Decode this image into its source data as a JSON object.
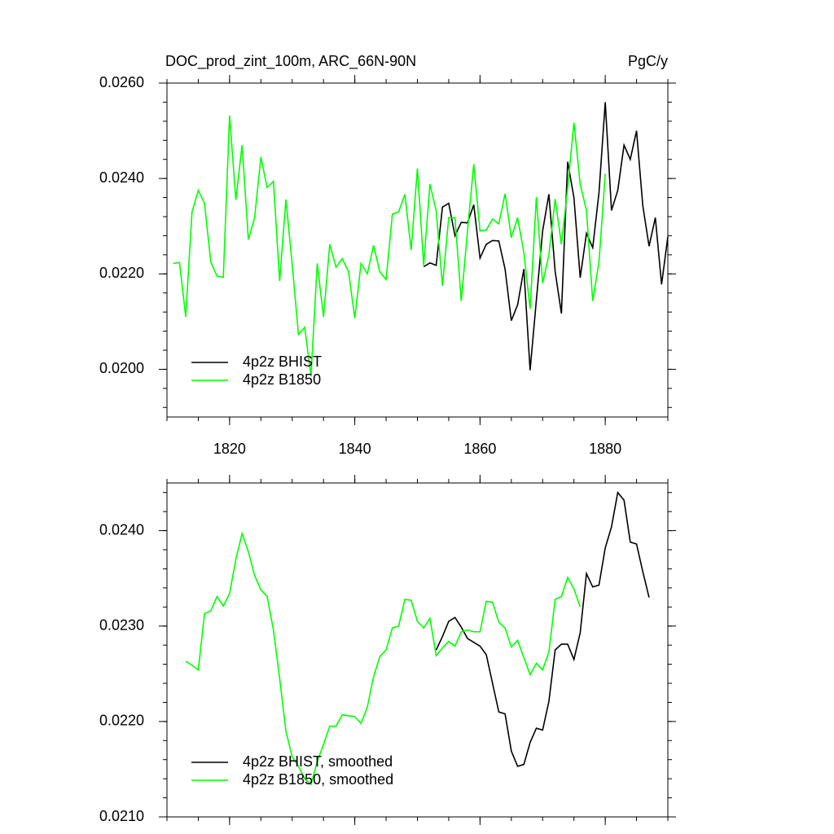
{
  "chart_data": [
    {
      "type": "line",
      "title": "DOC_prod_zint_100m, ARC_66N-90N",
      "units": "PgC/y",
      "x": [
        1811,
        1812,
        1813,
        1814,
        1815,
        1816,
        1817,
        1818,
        1819,
        1820,
        1821,
        1822,
        1823,
        1824,
        1825,
        1826,
        1827,
        1828,
        1829,
        1830,
        1831,
        1832,
        1833,
        1834,
        1835,
        1836,
        1837,
        1838,
        1839,
        1840,
        1841,
        1842,
        1843,
        1844,
        1845,
        1846,
        1847,
        1848,
        1849,
        1850,
        1851,
        1852,
        1853,
        1854,
        1855,
        1856,
        1857,
        1858,
        1859,
        1860,
        1861,
        1862,
        1863,
        1864,
        1865,
        1866,
        1867,
        1868,
        1869,
        1870,
        1871,
        1872,
        1873,
        1874,
        1875,
        1876,
        1877,
        1878,
        1879,
        1880,
        1881,
        1882,
        1883,
        1884,
        1885,
        1886,
        1887,
        1888,
        1889,
        1890
      ],
      "series": [
        {
          "name": "4p2z BHIST",
          "color": "#000000",
          "values": [
            null,
            null,
            null,
            null,
            null,
            null,
            null,
            null,
            null,
            null,
            null,
            null,
            null,
            null,
            null,
            null,
            null,
            null,
            null,
            null,
            null,
            null,
            null,
            null,
            null,
            null,
            null,
            null,
            null,
            null,
            null,
            null,
            null,
            null,
            null,
            null,
            null,
            null,
            null,
            null,
            0.02215,
            0.02223,
            0.02218,
            0.0234,
            0.02348,
            0.0228,
            0.02308,
            0.02307,
            0.02345,
            0.02233,
            0.02262,
            0.0227,
            0.02269,
            0.0221,
            0.02102,
            0.02135,
            0.0221,
            0.01998,
            0.02145,
            0.0229,
            0.02367,
            0.02205,
            0.02117,
            0.02435,
            0.0236,
            0.02192,
            0.02285,
            0.02255,
            0.0237,
            0.0256,
            0.02333,
            0.02375,
            0.0247,
            0.0244,
            0.025,
            0.02343,
            0.02258,
            0.02318,
            0.02178,
            0.02278
          ]
        },
        {
          "name": "4p2z B1850",
          "color": "#00ff00",
          "values": [
            0.02222,
            0.02224,
            0.0211,
            0.0233,
            0.02375,
            0.02348,
            0.02225,
            0.02195,
            0.02193,
            0.02532,
            0.02355,
            0.0247,
            0.02272,
            0.02318,
            0.02445,
            0.02381,
            0.02394,
            0.02185,
            0.02356,
            0.0222,
            0.02073,
            0.02088,
            0.01985,
            0.02222,
            0.0211,
            0.02262,
            0.02214,
            0.02232,
            0.02205,
            0.02107,
            0.02222,
            0.022,
            0.0226,
            0.02204,
            0.02188,
            0.02325,
            0.0233,
            0.02367,
            0.0225,
            0.02421,
            0.02218,
            0.02388,
            0.02332,
            0.02175,
            0.02318,
            0.02318,
            0.02143,
            0.0229,
            0.0243,
            0.0229,
            0.02292,
            0.02315,
            0.02305,
            0.02368,
            0.02276,
            0.02318,
            0.02245,
            0.02127,
            0.02361,
            0.0218,
            0.0224,
            0.02357,
            0.02262,
            0.0238,
            0.02517,
            0.02388,
            0.02333,
            0.02143,
            0.02225,
            0.0241,
            null,
            null,
            null,
            null,
            null,
            null,
            null,
            null,
            null,
            null
          ]
        }
      ],
      "xlim": [
        1810,
        1890
      ],
      "xticks": [
        1820,
        1840,
        1860,
        1880
      ],
      "ylim": [
        0.019,
        0.026
      ],
      "yticks": [
        {
          "value": 0.02,
          "label": "0.0200"
        },
        {
          "value": 0.022,
          "label": "0.0220"
        },
        {
          "value": 0.024,
          "label": "0.0240"
        },
        {
          "value": 0.026,
          "label": "0.0260"
        }
      ],
      "grid": false,
      "legend": "lower left"
    },
    {
      "type": "line",
      "x": [
        1811,
        1812,
        1813,
        1814,
        1815,
        1816,
        1817,
        1818,
        1819,
        1820,
        1821,
        1822,
        1823,
        1824,
        1825,
        1826,
        1827,
        1828,
        1829,
        1830,
        1831,
        1832,
        1833,
        1834,
        1835,
        1836,
        1837,
        1838,
        1839,
        1840,
        1841,
        1842,
        1843,
        1844,
        1845,
        1846,
        1847,
        1848,
        1849,
        1850,
        1851,
        1852,
        1853,
        1854,
        1855,
        1856,
        1857,
        1858,
        1859,
        1860,
        1861,
        1862,
        1863,
        1864,
        1865,
        1866,
        1867,
        1868,
        1869,
        1870,
        1871,
        1872,
        1873,
        1874,
        1875,
        1876,
        1877,
        1878,
        1879,
        1880,
        1881,
        1882,
        1883,
        1884,
        1885,
        1886,
        1887,
        1888,
        1889,
        1890
      ],
      "series": [
        {
          "name": "4p2z BHIST, smoothed",
          "color": "#000000",
          "values": [
            null,
            null,
            null,
            null,
            null,
            null,
            null,
            null,
            null,
            null,
            null,
            null,
            null,
            null,
            null,
            null,
            null,
            null,
            null,
            null,
            null,
            null,
            null,
            null,
            null,
            null,
            null,
            null,
            null,
            null,
            null,
            null,
            null,
            null,
            null,
            null,
            null,
            null,
            null,
            null,
            null,
            null,
            0.02275,
            0.02289,
            0.02305,
            0.02309,
            0.02299,
            0.02287,
            0.02283,
            0.02279,
            0.0227,
            0.0224,
            0.0221,
            0.02208,
            0.02169,
            0.02153,
            0.02155,
            0.02178,
            0.02193,
            0.02191,
            0.02221,
            0.02275,
            0.02281,
            0.02281,
            0.02265,
            0.02293,
            0.02355,
            0.02341,
            0.02343,
            0.02382,
            0.02404,
            0.0244,
            0.02432,
            0.02388,
            0.02386,
            0.02357,
            0.0233,
            null,
            null,
            null
          ]
        },
        {
          "name": "4p2z B1850, smoothed",
          "color": "#00ff00",
          "values": [
            null,
            null,
            0.02263,
            0.02259,
            0.02254,
            0.02313,
            0.02316,
            0.02331,
            0.02321,
            0.02334,
            0.0237,
            0.02397,
            0.02378,
            0.02353,
            0.02338,
            0.02331,
            0.02296,
            0.02245,
            0.0219,
            0.02163,
            0.02153,
            0.0214,
            0.02134,
            0.02158,
            0.02176,
            0.02195,
            0.02195,
            0.02207,
            0.02206,
            0.02205,
            0.02198,
            0.02215,
            0.02247,
            0.02268,
            0.02275,
            0.02298,
            0.023,
            0.02328,
            0.02327,
            0.02305,
            0.02298,
            0.02308,
            0.02269,
            0.02277,
            0.02284,
            0.02279,
            0.02294,
            0.02296,
            0.02294,
            0.02294,
            0.02326,
            0.02325,
            0.02304,
            0.02298,
            0.02278,
            0.02285,
            0.02267,
            0.02249,
            0.02261,
            0.02254,
            0.02273,
            0.02328,
            0.02331,
            0.02351,
            0.02339,
            0.0232,
            null,
            null,
            null,
            null,
            null,
            null,
            null,
            null,
            null,
            null,
            null,
            null,
            null,
            null
          ]
        }
      ],
      "xlim": [
        1810,
        1890
      ],
      "xticks": [
        1820,
        1840,
        1860,
        1880
      ],
      "ylim": [
        0.021,
        0.0245
      ],
      "yticks": [
        {
          "value": 0.021,
          "label": "0.0210"
        },
        {
          "value": 0.022,
          "label": "0.0220"
        },
        {
          "value": 0.023,
          "label": "0.0230"
        },
        {
          "value": 0.024,
          "label": "0.0240"
        }
      ],
      "grid": false,
      "legend": "lower left"
    }
  ]
}
